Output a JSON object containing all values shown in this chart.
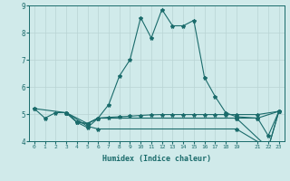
{
  "xlabel": "Humidex (Indice chaleur)",
  "bg_color": "#d0eaea",
  "line_color": "#1a6b6b",
  "grid_color": "#b8d4d4",
  "xlim": [
    -0.5,
    23.5
  ],
  "ylim": [
    4.0,
    9.0
  ],
  "yticks": [
    4,
    5,
    6,
    7,
    8,
    9
  ],
  "xticks": [
    0,
    1,
    2,
    3,
    4,
    5,
    6,
    7,
    8,
    9,
    10,
    11,
    12,
    13,
    14,
    15,
    16,
    17,
    18,
    19,
    21,
    22,
    23
  ],
  "line1_x": [
    0,
    1,
    2,
    3,
    4,
    5,
    6,
    7,
    8,
    9,
    10,
    11,
    12,
    13,
    14,
    15,
    16,
    17,
    18,
    19,
    21,
    22,
    23
  ],
  "line1_y": [
    5.2,
    4.85,
    5.05,
    5.05,
    4.7,
    4.5,
    4.85,
    5.35,
    6.4,
    7.0,
    8.55,
    7.8,
    8.85,
    8.25,
    8.25,
    8.45,
    6.35,
    5.65,
    5.05,
    4.9,
    4.85,
    4.2,
    5.1
  ],
  "line2_x": [
    3,
    4,
    5,
    6,
    19,
    21,
    23
  ],
  "line2_y": [
    5.05,
    4.7,
    4.65,
    4.85,
    4.85,
    4.85,
    5.1
  ],
  "line3_x": [
    3,
    4,
    5,
    6,
    7,
    8,
    9,
    10,
    11,
    12,
    13,
    14,
    15,
    16,
    17,
    18,
    19,
    21,
    23
  ],
  "line3_y": [
    5.05,
    4.7,
    4.65,
    4.85,
    4.88,
    4.9,
    4.92,
    4.95,
    4.97,
    4.98,
    4.98,
    4.98,
    4.98,
    4.98,
    4.98,
    4.98,
    4.98,
    4.98,
    5.1
  ],
  "line4_x": [
    3,
    5,
    6,
    19,
    22,
    23
  ],
  "line4_y": [
    5.05,
    4.55,
    4.45,
    4.45,
    3.75,
    5.1
  ],
  "line5_x": [
    0,
    3,
    5,
    6,
    19,
    22,
    23
  ],
  "line5_y": [
    5.2,
    5.05,
    4.65,
    4.85,
    4.85,
    3.75,
    5.1
  ]
}
